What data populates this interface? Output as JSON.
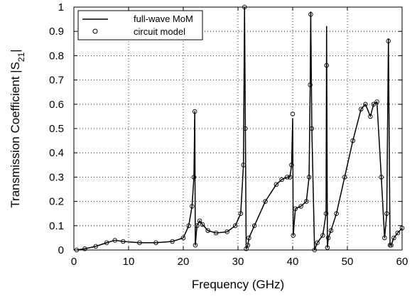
{
  "chart_data": {
    "type": "line",
    "xlabel": "Frequency (GHz)",
    "ylabel_main": "Transmission Coefficient |S",
    "ylabel_sub": "21",
    "ylabel_end": "|",
    "xlim": [
      0,
      60
    ],
    "ylim": [
      0,
      1
    ],
    "xticks": [
      0,
      10,
      20,
      30,
      40,
      50,
      60
    ],
    "yticks": [
      0,
      0.1,
      0.2,
      0.3,
      0.4,
      0.5,
      0.6,
      0.7,
      0.8,
      0.9,
      1
    ],
    "xtick_labels": [
      "0",
      "10",
      "20",
      "30",
      "40",
      "50",
      "60"
    ],
    "ytick_labels": [
      "0",
      "0.1",
      "0.2",
      "0.3",
      "0.4",
      "0.5",
      "0.6",
      "0.7",
      "0.8",
      "0.9",
      "1"
    ],
    "grid": true,
    "legend_position": "top-left",
    "series": [
      {
        "name": "full-wave MoM",
        "style": "solid-line",
        "color": "#000000",
        "x": [
          0.5,
          2,
          4,
          6,
          7.5,
          9,
          12,
          15,
          18,
          20,
          21,
          21.6,
          21.95,
          22.1,
          22.2,
          22.5,
          23,
          23.5,
          24.5,
          26,
          28,
          29.5,
          30.5,
          31.0,
          31.2,
          31.35,
          31.5,
          31.8,
          32.0,
          33,
          35,
          37,
          38,
          39,
          39.5,
          39.8,
          40.0,
          40.1,
          40.5,
          41.5,
          42.5,
          43.0,
          43.2,
          43.3,
          43.5,
          44.0,
          44.5,
          45.5,
          46.1,
          46.2,
          46.35,
          46.5,
          47.0,
          48,
          49.5,
          51,
          52.5,
          53.3,
          54.2,
          54.8,
          55.4,
          56.2,
          56.8,
          57.2,
          57.5,
          57.8,
          58.0,
          58.5,
          59.2,
          60.0
        ],
        "y": [
          0.0,
          0.005,
          0.015,
          0.03,
          0.04,
          0.035,
          0.03,
          0.03,
          0.035,
          0.05,
          0.1,
          0.18,
          0.3,
          0.57,
          0.02,
          0.1,
          0.12,
          0.105,
          0.08,
          0.07,
          0.075,
          0.1,
          0.15,
          0.35,
          1.0,
          0.5,
          0.005,
          0.02,
          0.05,
          0.1,
          0.2,
          0.27,
          0.29,
          0.3,
          0.3,
          0.35,
          0.54,
          0.06,
          0.17,
          0.18,
          0.2,
          0.3,
          0.68,
          0.98,
          0.5,
          0.0,
          0.03,
          0.06,
          0.15,
          0.92,
          0.01,
          0.05,
          0.08,
          0.15,
          0.3,
          0.45,
          0.58,
          0.6,
          0.55,
          0.6,
          0.61,
          0.3,
          0.05,
          0.15,
          0.87,
          0.02,
          0.02,
          0.05,
          0.07,
          0.09
        ]
      },
      {
        "name": "circuit model",
        "style": "open-circle-markers",
        "color": "#000000",
        "x": [
          0.5,
          2,
          4,
          6,
          7.5,
          9,
          12,
          15,
          18,
          20,
          21,
          21.6,
          21.95,
          22.1,
          22.2,
          22.5,
          23,
          23.5,
          24.5,
          26,
          28,
          29.5,
          30.5,
          31.0,
          31.2,
          31.35,
          31.5,
          31.8,
          32.0,
          33,
          35,
          37,
          38,
          39,
          39.5,
          39.8,
          40.0,
          40.1,
          40.5,
          41.5,
          42.5,
          43.0,
          43.2,
          43.3,
          43.5,
          44.0,
          44.5,
          45.5,
          46.1,
          46.2,
          46.35,
          46.5,
          47.0,
          48,
          49.5,
          51,
          52.5,
          53.3,
          54.2,
          54.8,
          55.4,
          56.2,
          56.8,
          57.2,
          57.5,
          57.8,
          58.0,
          58.5,
          59.2,
          60.0
        ],
        "y": [
          0.0,
          0.005,
          0.015,
          0.03,
          0.04,
          0.035,
          0.03,
          0.03,
          0.035,
          0.05,
          0.1,
          0.18,
          0.3,
          0.57,
          0.02,
          0.1,
          0.12,
          0.105,
          0.08,
          0.07,
          0.075,
          0.1,
          0.15,
          0.35,
          1.0,
          0.5,
          0.005,
          0.02,
          0.05,
          0.1,
          0.2,
          0.27,
          0.29,
          0.3,
          0.3,
          0.35,
          0.56,
          0.06,
          0.17,
          0.18,
          0.2,
          0.3,
          0.68,
          0.97,
          0.5,
          0.0,
          0.03,
          0.06,
          0.15,
          0.76,
          0.01,
          0.05,
          0.08,
          0.15,
          0.3,
          0.45,
          0.58,
          0.6,
          0.55,
          0.6,
          0.61,
          0.3,
          0.05,
          0.15,
          0.86,
          0.02,
          0.02,
          0.05,
          0.07,
          0.09
        ]
      }
    ],
    "legend": [
      {
        "label": "full-wave MoM",
        "marker": "line"
      },
      {
        "label": "circuit model",
        "marker": "circle"
      }
    ]
  }
}
